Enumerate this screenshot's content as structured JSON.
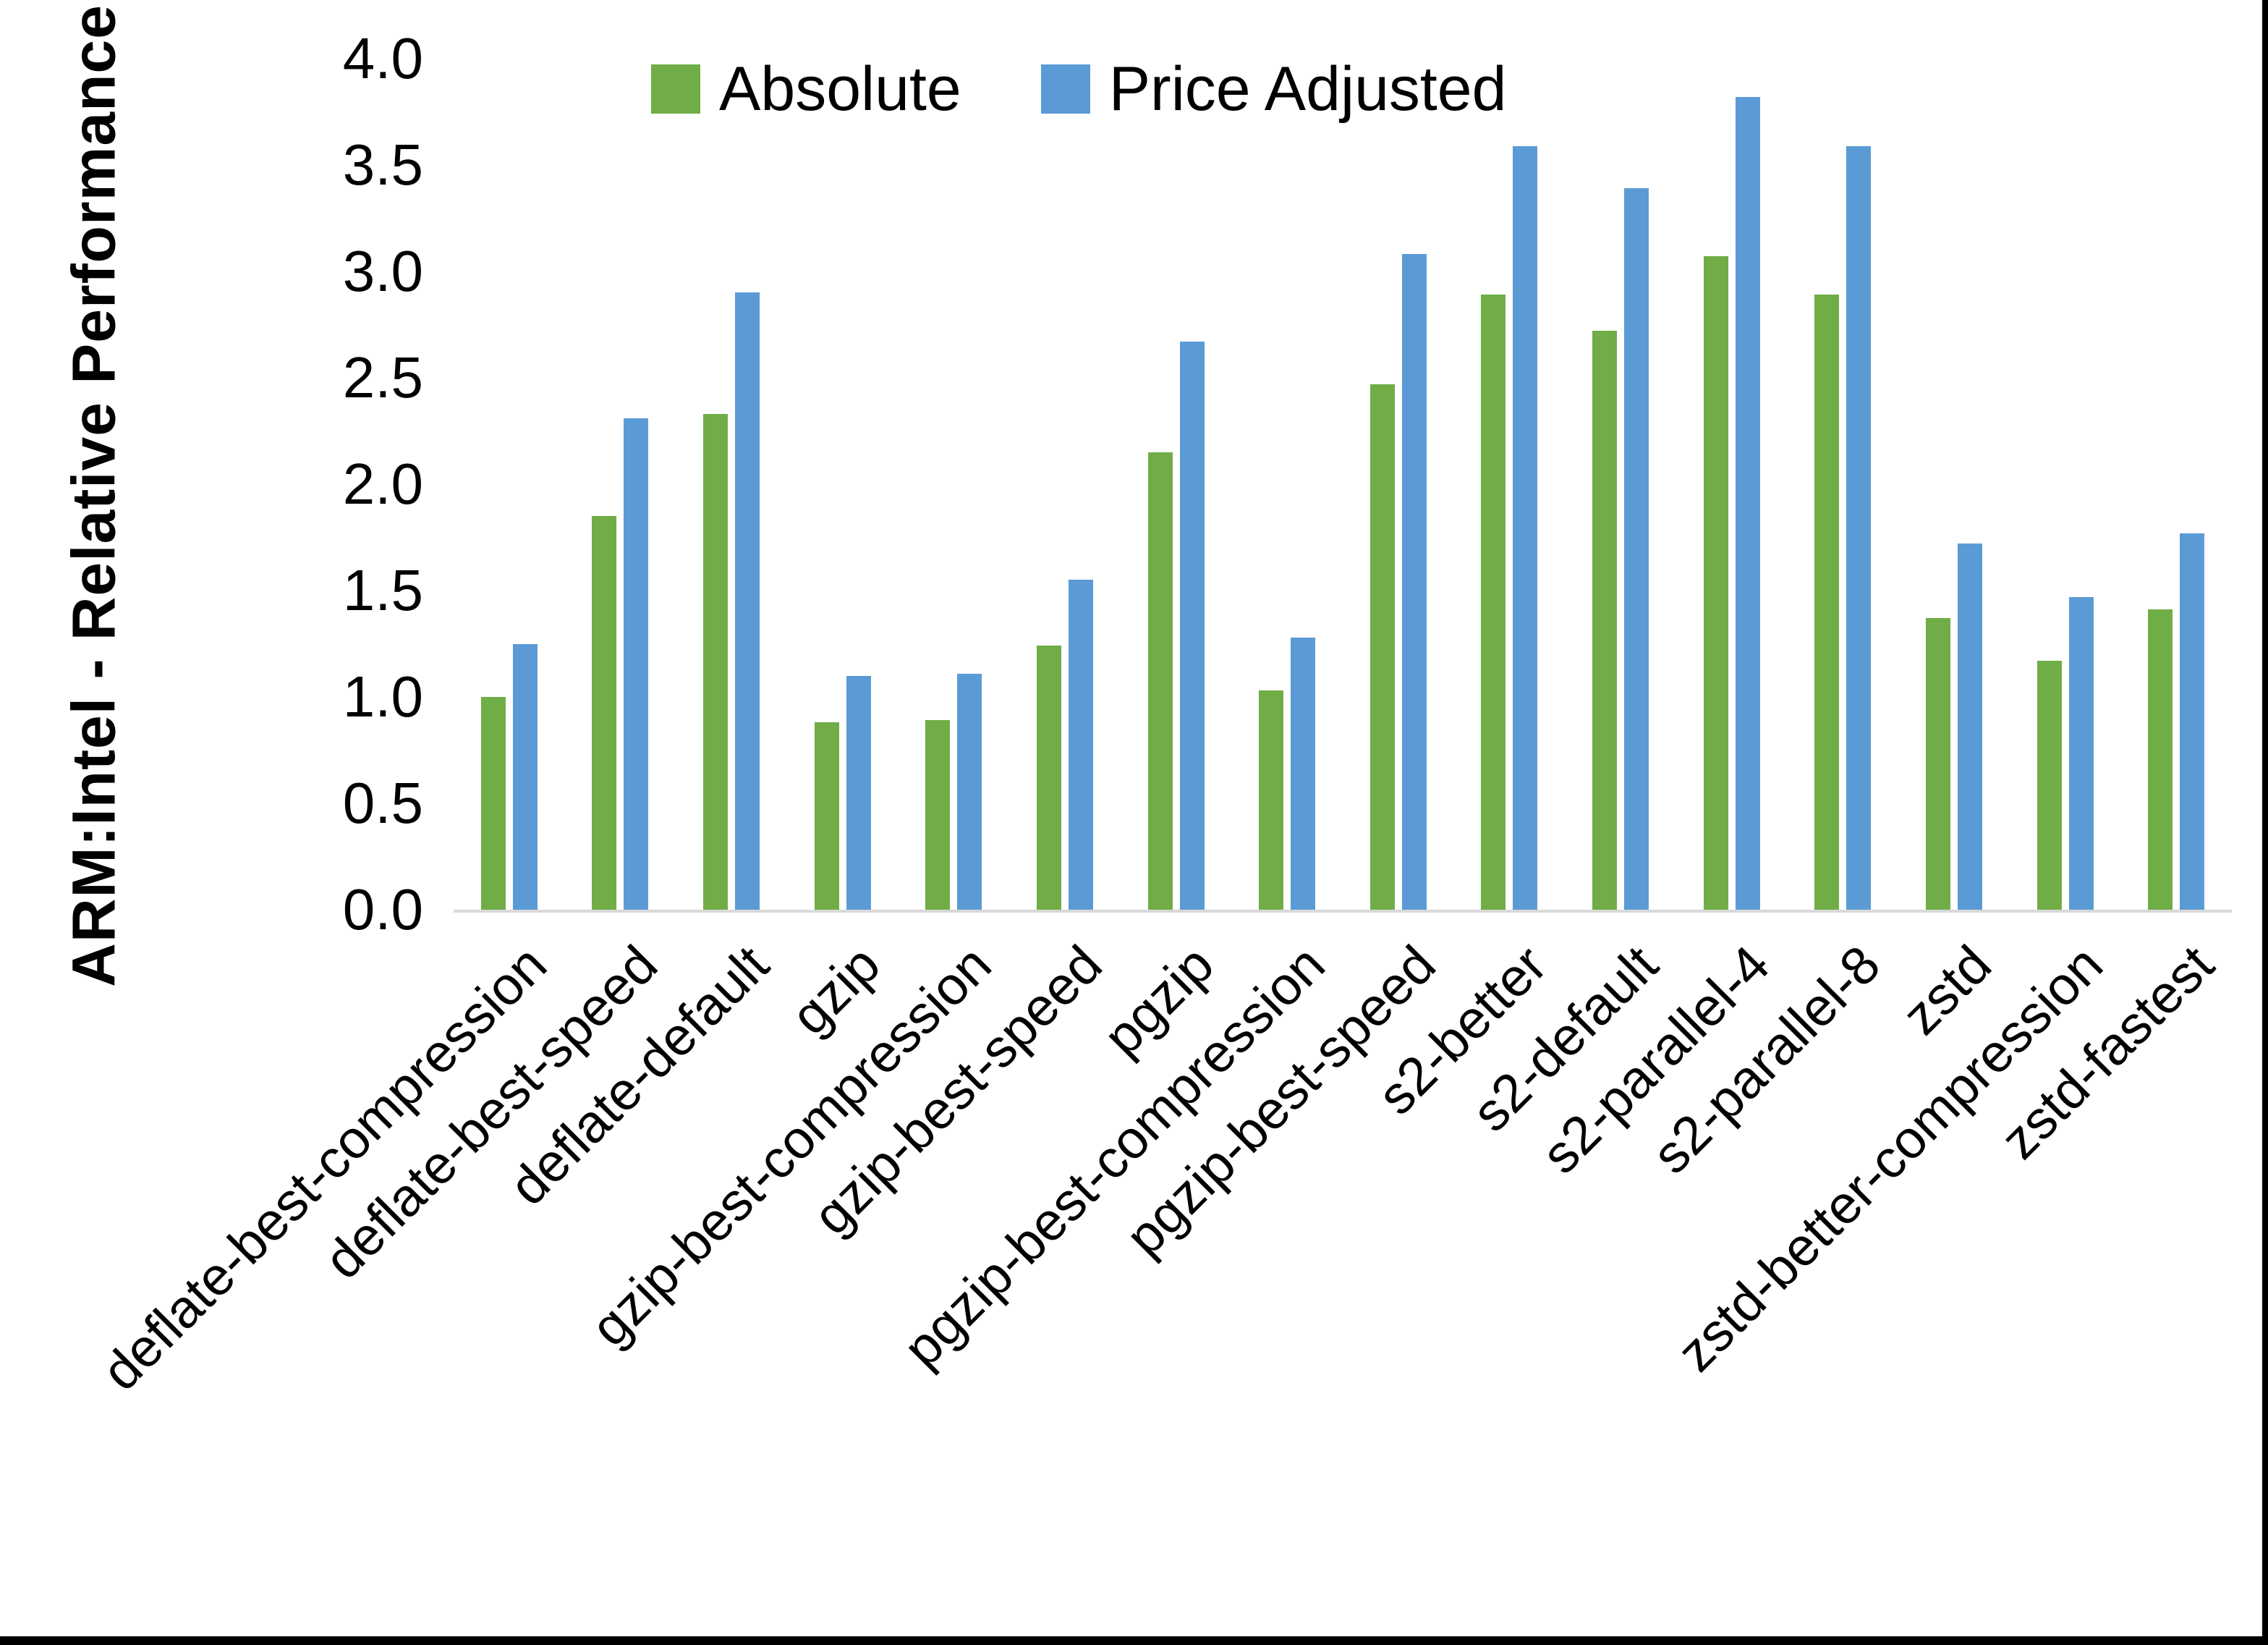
{
  "chart_data": {
    "type": "bar",
    "title": "",
    "y_axis_title": "ARM:Intel - Relative Performance",
    "xlabel": "",
    "ylabel": "ARM:Intel - Relative Performance",
    "ylim": [
      0.0,
      4.0
    ],
    "y_tick_step": 0.5,
    "y_ticks": [
      "0.0",
      "0.5",
      "1.0",
      "1.5",
      "2.0",
      "2.5",
      "3.0",
      "3.5",
      "4.0"
    ],
    "grid": "off",
    "legend_position": "top-center",
    "categories": [
      "deflate-best-compression",
      "deflate-best-speed",
      "deflate-default",
      "gzip",
      "gzip-best-compression",
      "gzip-best-speed",
      "pgzip",
      "pgzip-best-compression",
      "pgzip-best-speed",
      "s2-better",
      "s2-default",
      "s2-parallel-4",
      "s2-parallel-8",
      "zstd",
      "zstd-better-compression",
      "zstd-fastest"
    ],
    "series": [
      {
        "name": "Absolute",
        "color": "#70AD47",
        "values": [
          1.0,
          1.85,
          2.33,
          0.88,
          0.89,
          1.24,
          2.15,
          1.03,
          2.47,
          2.89,
          2.72,
          3.07,
          2.89,
          1.37,
          1.17,
          1.41
        ]
      },
      {
        "name": "Price Adjusted",
        "color": "#5B9BD5",
        "values": [
          1.25,
          2.31,
          2.9,
          1.1,
          1.11,
          1.55,
          2.67,
          1.28,
          3.08,
          3.59,
          3.39,
          3.82,
          3.59,
          1.72,
          1.47,
          1.77
        ]
      }
    ]
  },
  "colors": {
    "background": "#FFFFFF",
    "axis_line": "#D9D9D9",
    "frame_border": "#000000",
    "text": "#000000"
  }
}
